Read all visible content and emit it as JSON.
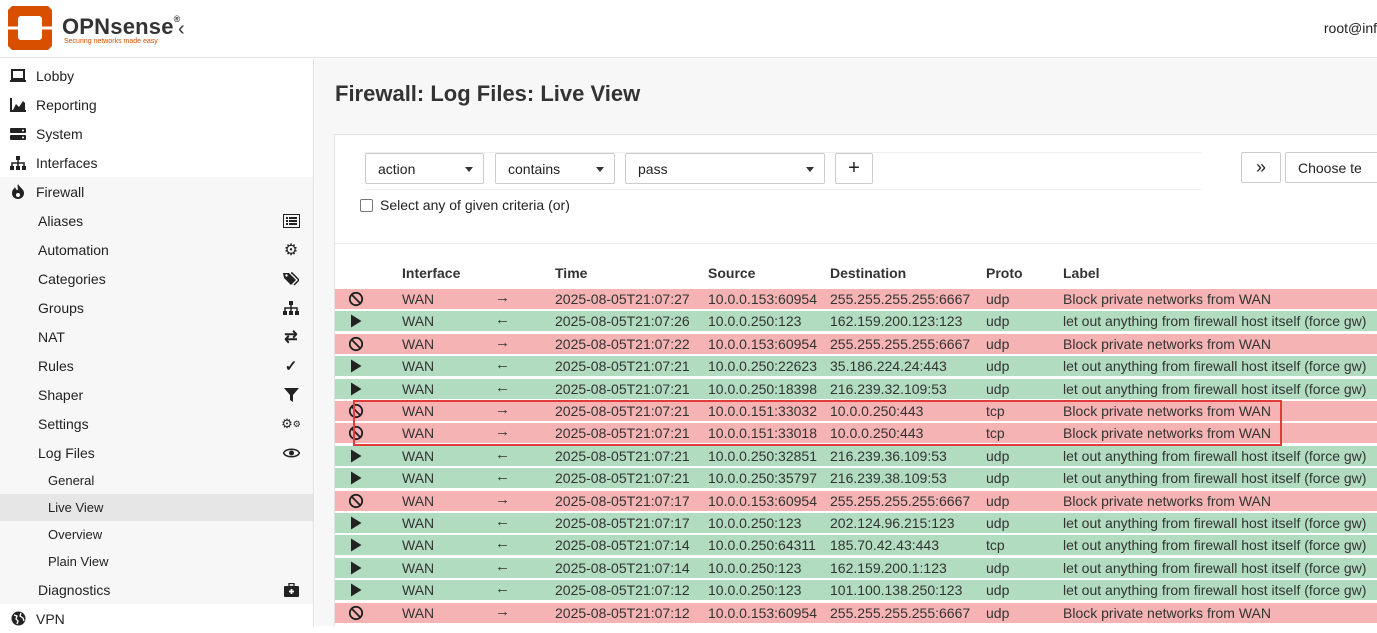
{
  "header": {
    "brand": "OPNsense",
    "brand_mark": "®",
    "tagline": "Securing networks made easy",
    "user": "root@inf"
  },
  "sidebar": {
    "items": [
      {
        "label": "Lobby",
        "icon": "laptop-icon"
      },
      {
        "label": "Reporting",
        "icon": "area-chart-icon"
      },
      {
        "label": "System",
        "icon": "server-icon"
      },
      {
        "label": "Interfaces",
        "icon": "sitemap-icon"
      },
      {
        "label": "Firewall",
        "icon": "fire-icon"
      }
    ],
    "firewall_sub": [
      {
        "label": "Aliases",
        "icon": "list-icon"
      },
      {
        "label": "Automation",
        "icon": "gear-icon"
      },
      {
        "label": "Categories",
        "icon": "tags-icon"
      },
      {
        "label": "Groups",
        "icon": "sitemap-icon"
      },
      {
        "label": "NAT",
        "icon": "exchange-icon"
      },
      {
        "label": "Rules",
        "icon": "check-icon"
      },
      {
        "label": "Shaper",
        "icon": "filter-icon"
      },
      {
        "label": "Settings",
        "icon": "gears-icon"
      },
      {
        "label": "Log Files",
        "icon": "eye-icon"
      }
    ],
    "logfiles_sub": [
      {
        "label": "General"
      },
      {
        "label": "Live View"
      },
      {
        "label": "Overview"
      },
      {
        "label": "Plain View"
      }
    ],
    "diagnostics": {
      "label": "Diagnostics",
      "icon": "medkit-icon"
    },
    "vpn": {
      "label": "VPN",
      "icon": "globe-icon"
    }
  },
  "main": {
    "title": "Firewall: Log Files: Live View",
    "filter": {
      "field": "action",
      "operator": "contains",
      "value": "pass",
      "add_label": "+",
      "expand_label": "»",
      "choose_label": "Choose te",
      "checkbox_label": "Select any of given criteria (or)"
    },
    "columns": [
      "Interface",
      "Time",
      "Source",
      "Destination",
      "Proto",
      "Label"
    ],
    "rows": [
      {
        "action": "block",
        "iface": "WAN",
        "dir": "→",
        "time": "2025-08-05T21:07:27",
        "src": "10.0.0.153:60954",
        "dst": "255.255.255.255:6667",
        "proto": "udp",
        "label": "Block private networks from WAN"
      },
      {
        "action": "pass",
        "iface": "WAN",
        "dir": "←",
        "time": "2025-08-05T21:07:26",
        "src": "10.0.0.250:123",
        "dst": "162.159.200.123:123",
        "proto": "udp",
        "label": "let out anything from firewall host itself (force gw)"
      },
      {
        "action": "block",
        "iface": "WAN",
        "dir": "→",
        "time": "2025-08-05T21:07:22",
        "src": "10.0.0.153:60954",
        "dst": "255.255.255.255:6667",
        "proto": "udp",
        "label": "Block private networks from WAN"
      },
      {
        "action": "pass",
        "iface": "WAN",
        "dir": "←",
        "time": "2025-08-05T21:07:21",
        "src": "10.0.0.250:22623",
        "dst": "35.186.224.24:443",
        "proto": "udp",
        "label": "let out anything from firewall host itself (force gw)"
      },
      {
        "action": "pass",
        "iface": "WAN",
        "dir": "←",
        "time": "2025-08-05T21:07:21",
        "src": "10.0.0.250:18398",
        "dst": "216.239.32.109:53",
        "proto": "udp",
        "label": "let out anything from firewall host itself (force gw)"
      },
      {
        "action": "block",
        "iface": "WAN",
        "dir": "→",
        "time": "2025-08-05T21:07:21",
        "src": "10.0.0.151:33032",
        "dst": "10.0.0.250:443",
        "proto": "tcp",
        "label": "Block private networks from WAN"
      },
      {
        "action": "block",
        "iface": "WAN",
        "dir": "→",
        "time": "2025-08-05T21:07:21",
        "src": "10.0.0.151:33018",
        "dst": "10.0.0.250:443",
        "proto": "tcp",
        "label": "Block private networks from WAN"
      },
      {
        "action": "pass",
        "iface": "WAN",
        "dir": "←",
        "time": "2025-08-05T21:07:21",
        "src": "10.0.0.250:32851",
        "dst": "216.239.36.109:53",
        "proto": "udp",
        "label": "let out anything from firewall host itself (force gw)"
      },
      {
        "action": "pass",
        "iface": "WAN",
        "dir": "←",
        "time": "2025-08-05T21:07:21",
        "src": "10.0.0.250:35797",
        "dst": "216.239.38.109:53",
        "proto": "udp",
        "label": "let out anything from firewall host itself (force gw)"
      },
      {
        "action": "block",
        "iface": "WAN",
        "dir": "→",
        "time": "2025-08-05T21:07:17",
        "src": "10.0.0.153:60954",
        "dst": "255.255.255.255:6667",
        "proto": "udp",
        "label": "Block private networks from WAN"
      },
      {
        "action": "pass",
        "iface": "WAN",
        "dir": "←",
        "time": "2025-08-05T21:07:17",
        "src": "10.0.0.250:123",
        "dst": "202.124.96.215:123",
        "proto": "udp",
        "label": "let out anything from firewall host itself (force gw)"
      },
      {
        "action": "pass",
        "iface": "WAN",
        "dir": "←",
        "time": "2025-08-05T21:07:14",
        "src": "10.0.0.250:64311",
        "dst": "185.70.42.43:443",
        "proto": "tcp",
        "label": "let out anything from firewall host itself (force gw)"
      },
      {
        "action": "pass",
        "iface": "WAN",
        "dir": "←",
        "time": "2025-08-05T21:07:14",
        "src": "10.0.0.250:123",
        "dst": "162.159.200.1:123",
        "proto": "udp",
        "label": "let out anything from firewall host itself (force gw)"
      },
      {
        "action": "pass",
        "iface": "WAN",
        "dir": "←",
        "time": "2025-08-05T21:07:12",
        "src": "10.0.0.250:123",
        "dst": "101.100.138.250:123",
        "proto": "udp",
        "label": "let out anything from firewall host itself (force gw)"
      },
      {
        "action": "block",
        "iface": "WAN",
        "dir": "→",
        "time": "2025-08-05T21:07:12",
        "src": "10.0.0.153:60954",
        "dst": "255.255.255.255:6667",
        "proto": "udp",
        "label": "Block private networks from WAN"
      }
    ]
  },
  "colors": {
    "accent": "#d94f00",
    "block_row": "#f5b3b3",
    "pass_row": "#b2dcc0",
    "highlight_box": "#e03c3c"
  }
}
